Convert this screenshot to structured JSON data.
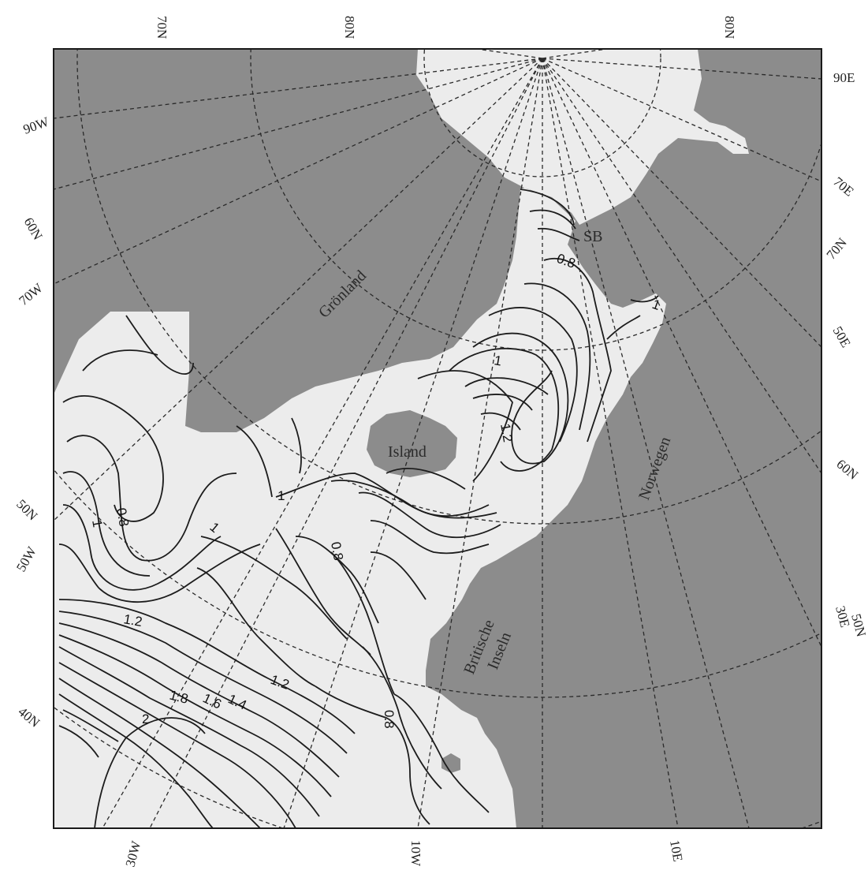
{
  "map": {
    "colors": {
      "land": "#8c8c8c",
      "sea": "#ececec",
      "lines": "#1c1c1c"
    },
    "place_names": {
      "greenland": "Grönland",
      "iceland": "Island",
      "norway": "Norwegen",
      "svalbard": "SB",
      "british_isles_line1": "Britische",
      "british_isles_line2": "Inseln"
    },
    "graticule_labels": {
      "top_70n": "70N",
      "top_80n_a": "80N",
      "top_80n_b": "80N",
      "left_90w": "90W",
      "left_60n": "60N",
      "left_70w": "70W",
      "left_50n": "50N",
      "left_50w": "50W",
      "left_40n": "40N",
      "right_90e": "90E",
      "right_70e": "70E",
      "right_70n": "70N",
      "right_50e": "50E",
      "right_60n": "60N",
      "right_30e": "30E",
      "right_50n": "50N",
      "bottom_30w": "30W",
      "bottom_10w": "10W",
      "bottom_10e": "10E"
    },
    "contour_labels": [
      {
        "id": "c08-norw",
        "text": "0.8"
      },
      {
        "id": "c1-norw",
        "text": "1"
      },
      {
        "id": "c12-norw",
        "text": "1.2"
      },
      {
        "id": "c1-ne",
        "text": "1"
      },
      {
        "id": "c1-isl",
        "text": "1"
      },
      {
        "id": "c08-west",
        "text": "0.8"
      },
      {
        "id": "c1-west",
        "text": "1"
      },
      {
        "id": "c1-mid",
        "text": "1"
      },
      {
        "id": "c08-mid",
        "text": "0.8"
      },
      {
        "id": "c12-sw",
        "text": "1.2"
      },
      {
        "id": "c12-mid",
        "text": "1.2"
      },
      {
        "id": "c14",
        "text": "1.4"
      },
      {
        "id": "c16",
        "text": "1.6"
      },
      {
        "id": "c18",
        "text": "1.8"
      },
      {
        "id": "c2",
        "text": "2"
      },
      {
        "id": "c08-south",
        "text": "0.8"
      }
    ]
  }
}
